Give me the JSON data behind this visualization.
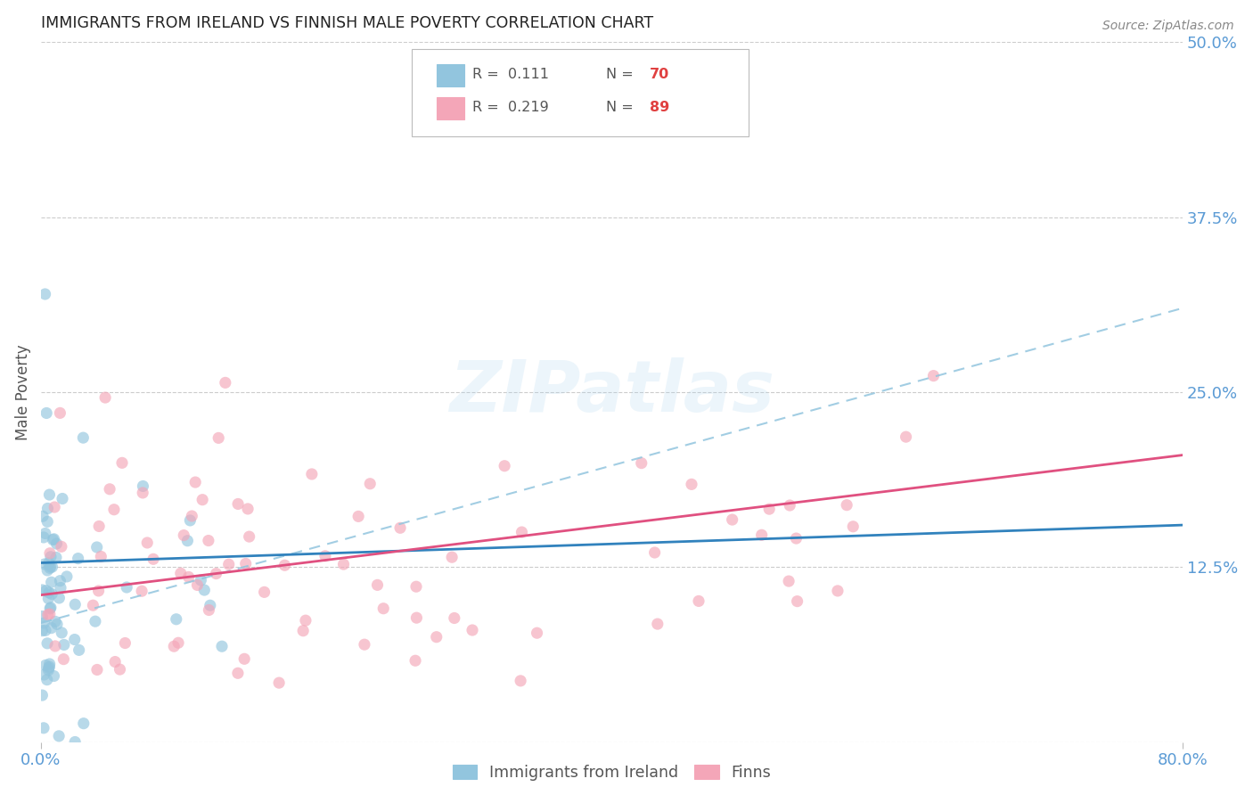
{
  "title": "IMMIGRANTS FROM IRELAND VS FINNISH MALE POVERTY CORRELATION CHART",
  "source": "Source: ZipAtlas.com",
  "ylabel": "Male Poverty",
  "xlim": [
    0.0,
    0.8
  ],
  "ylim": [
    0.0,
    0.5
  ],
  "blue_color": "#92c5de",
  "blue_dark": "#3182bd",
  "pink_color": "#f4a6b8",
  "pink_dark": "#e05080",
  "dashed_color": "#92c5de",
  "background_color": "#ffffff",
  "grid_color": "#cccccc",
  "label_color": "#5b9bd5",
  "watermark": "ZIPatlas",
  "ireland_trend": [
    0.0,
    0.128,
    0.8,
    0.155
  ],
  "finn_trend": [
    0.0,
    0.105,
    0.8,
    0.205
  ],
  "dashed_trend": [
    0.0,
    0.085,
    0.8,
    0.31
  ]
}
